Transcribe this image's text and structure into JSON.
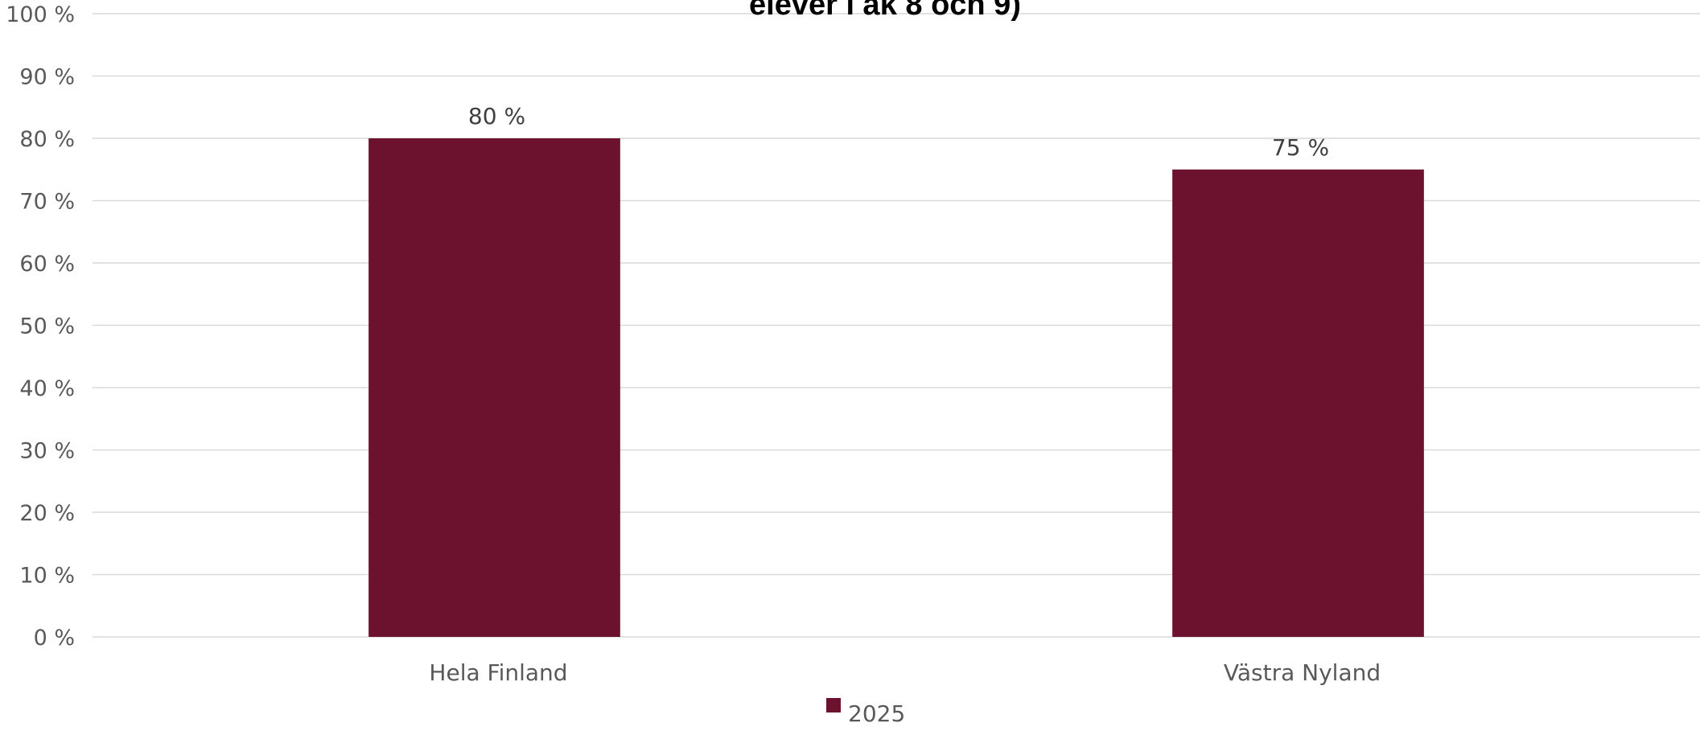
{
  "chart_data": {
    "type": "bar",
    "title": "elever i åk 8 och 9)",
    "categories": [
      "Hela Finland",
      "Västra Nyland"
    ],
    "series": [
      {
        "name": "2025",
        "values": [
          80,
          75
        ],
        "data_labels": [
          "80 %",
          "75 %"
        ],
        "color": "#6c112e"
      }
    ],
    "y_ticks": [
      "0 %",
      "10 %",
      "20 %",
      "30 %",
      "40 %",
      "50 %",
      "60 %",
      "70 %",
      "80 %",
      "90 %",
      "100 %"
    ],
    "ylim": [
      0,
      100
    ],
    "grid": true,
    "legend": {
      "position": "bottom",
      "labels": [
        "2025"
      ]
    },
    "xlabel": "",
    "ylabel": ""
  }
}
